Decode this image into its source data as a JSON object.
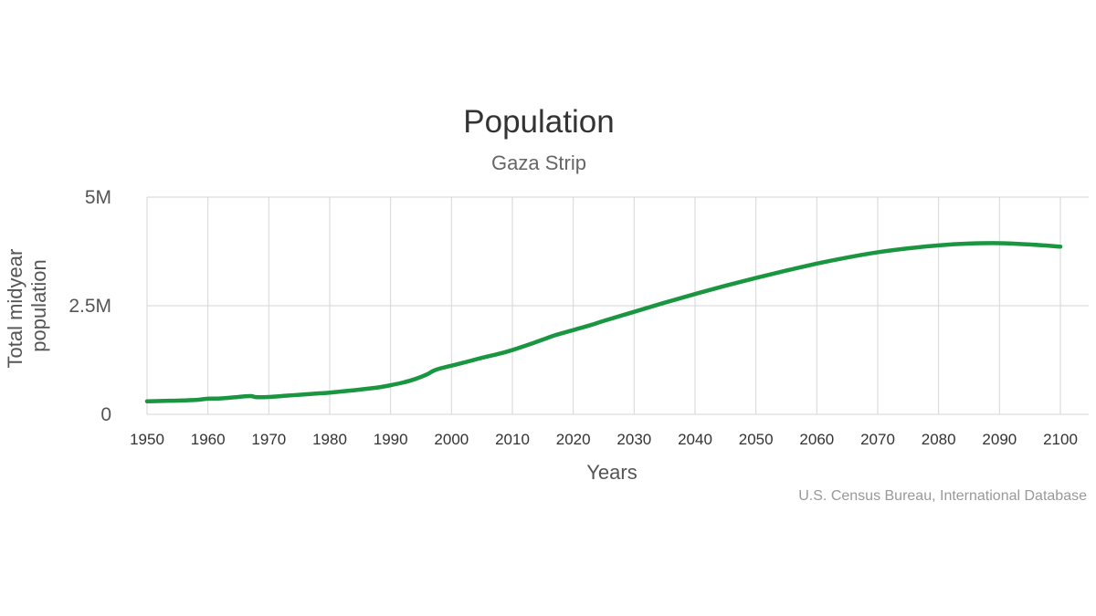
{
  "colors": {
    "series": "#1a9641",
    "grid": "#d6d6d6",
    "background": "#ffffff"
  },
  "chart_data": {
    "type": "line",
    "title": "Population",
    "subtitle": "Gaza Strip",
    "xlabel": "Years",
    "ylabel_lines": [
      "Total midyear",
      "population"
    ],
    "xlim": [
      1950,
      2100
    ],
    "ylim": [
      0,
      5000000
    ],
    "x_ticks": [
      1950,
      1960,
      1970,
      1980,
      1990,
      2000,
      2010,
      2020,
      2030,
      2040,
      2050,
      2060,
      2070,
      2080,
      2090,
      2100
    ],
    "x_tick_labels": [
      "1950",
      "1960",
      "1970",
      "1980",
      "1990",
      "2000",
      "2010",
      "2020",
      "2030",
      "2040",
      "2050",
      "2060",
      "2070",
      "2080",
      "2090",
      "2100"
    ],
    "y_ticks": [
      0,
      2500000,
      5000000
    ],
    "y_tick_labels": [
      "0",
      "2.5M",
      "5M"
    ],
    "grid": true,
    "legend": "none",
    "credits": "U.S. Census Bureau, International Database",
    "series": [
      {
        "name": "Gaza Strip",
        "x": [
          1950,
          1953,
          1955,
          1958,
          1960,
          1962,
          1965,
          1967,
          1968,
          1970,
          1973,
          1975,
          1978,
          1980,
          1983,
          1985,
          1988,
          1990,
          1992,
          1994,
          1996,
          1997,
          1998,
          2000,
          2002,
          2005,
          2008,
          2010,
          2013,
          2015,
          2017,
          2020,
          2023,
          2025,
          2030,
          2035,
          2040,
          2045,
          2050,
          2055,
          2060,
          2065,
          2070,
          2075,
          2080,
          2085,
          2090,
          2095,
          2100
        ],
        "values": [
          300000,
          310000,
          315000,
          330000,
          360000,
          365000,
          400000,
          420000,
          395000,
          400000,
          430000,
          450000,
          480000,
          500000,
          540000,
          570000,
          620000,
          670000,
          730000,
          810000,
          920000,
          1000000,
          1050000,
          1120000,
          1190000,
          1300000,
          1400000,
          1480000,
          1620000,
          1720000,
          1820000,
          1940000,
          2060000,
          2150000,
          2360000,
          2570000,
          2770000,
          2960000,
          3140000,
          3310000,
          3470000,
          3610000,
          3730000,
          3820000,
          3890000,
          3930000,
          3940000,
          3910000,
          3860000
        ]
      }
    ]
  }
}
